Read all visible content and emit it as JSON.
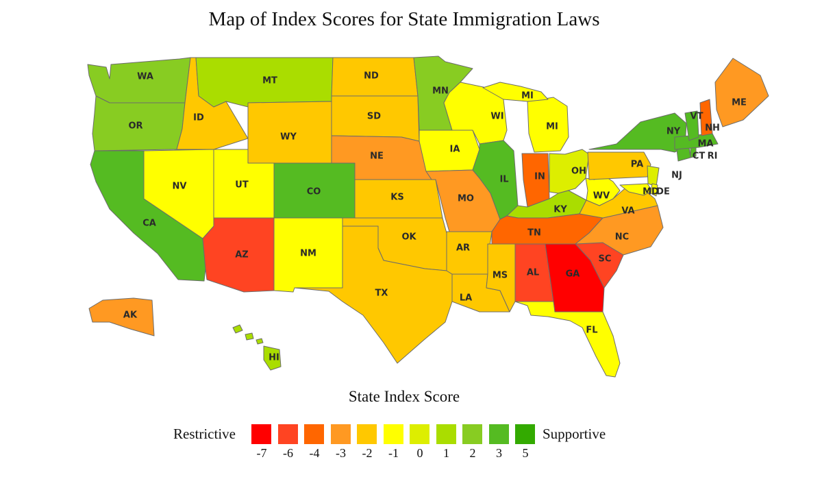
{
  "title": "Map of Index Scores for State Immigration Laws",
  "legend": {
    "title": "State Index Score",
    "left_label": "Restrictive",
    "right_label": "Supportive",
    "bins": [
      {
        "label": "-7",
        "color": "#ff0000"
      },
      {
        "label": "-6",
        "color": "#ff4422"
      },
      {
        "label": "-4",
        "color": "#ff6600"
      },
      {
        "label": "-3",
        "color": "#ff9922"
      },
      {
        "label": "-2",
        "color": "#ffc800"
      },
      {
        "label": "-1",
        "color": "#ffff00"
      },
      {
        "label": "0",
        "color": "#ddee00"
      },
      {
        "label": "1",
        "color": "#aadd00"
      },
      {
        "label": "2",
        "color": "#88cc22"
      },
      {
        "label": "3",
        "color": "#55bb22"
      },
      {
        "label": "5",
        "color": "#33aa00"
      }
    ]
  },
  "states": [
    {
      "abbr": "WA",
      "score": 2,
      "color": "#88cc22"
    },
    {
      "abbr": "OR",
      "score": 2,
      "color": "#88cc22"
    },
    {
      "abbr": "CA",
      "score": 3,
      "color": "#55bb22"
    },
    {
      "abbr": "ID",
      "score": -2,
      "color": "#ffc800"
    },
    {
      "abbr": "NV",
      "score": -1,
      "color": "#ffff00"
    },
    {
      "abbr": "MT",
      "score": 1,
      "color": "#aadd00"
    },
    {
      "abbr": "WY",
      "score": -2,
      "color": "#ffc800"
    },
    {
      "abbr": "UT",
      "score": -1,
      "color": "#ffff00"
    },
    {
      "abbr": "AZ",
      "score": -6,
      "color": "#ff4422"
    },
    {
      "abbr": "CO",
      "score": 3,
      "color": "#55bb22"
    },
    {
      "abbr": "NM",
      "score": -1,
      "color": "#ffff00"
    },
    {
      "abbr": "ND",
      "score": -2,
      "color": "#ffc800"
    },
    {
      "abbr": "SD",
      "score": -2,
      "color": "#ffc800"
    },
    {
      "abbr": "NE",
      "score": -3,
      "color": "#ff9922"
    },
    {
      "abbr": "KS",
      "score": -2,
      "color": "#ffc800"
    },
    {
      "abbr": "OK",
      "score": -2,
      "color": "#ffc800"
    },
    {
      "abbr": "TX",
      "score": -2,
      "color": "#ffc800"
    },
    {
      "abbr": "MN",
      "score": 2,
      "color": "#88cc22"
    },
    {
      "abbr": "IA",
      "score": -1,
      "color": "#ffff00"
    },
    {
      "abbr": "MO",
      "score": -3,
      "color": "#ff9922"
    },
    {
      "abbr": "AR",
      "score": -2,
      "color": "#ffc800"
    },
    {
      "abbr": "LA",
      "score": -2,
      "color": "#ffc800"
    },
    {
      "abbr": "WI",
      "score": -1,
      "color": "#ffff00"
    },
    {
      "abbr": "IL",
      "score": 3,
      "color": "#55bb22"
    },
    {
      "abbr": "MI",
      "score": -1,
      "color": "#ffff00"
    },
    {
      "abbr": "IN",
      "score": -4,
      "color": "#ff6600"
    },
    {
      "abbr": "OH",
      "score": 0,
      "color": "#ddee00"
    },
    {
      "abbr": "KY",
      "score": 1,
      "color": "#aadd00"
    },
    {
      "abbr": "TN",
      "score": -4,
      "color": "#ff6600"
    },
    {
      "abbr": "MS",
      "score": -2,
      "color": "#ffc800"
    },
    {
      "abbr": "AL",
      "score": -6,
      "color": "#ff4422"
    },
    {
      "abbr": "GA",
      "score": -7,
      "color": "#ff0000"
    },
    {
      "abbr": "FL",
      "score": -1,
      "color": "#ffff00"
    },
    {
      "abbr": "SC",
      "score": -6,
      "color": "#ff4422"
    },
    {
      "abbr": "NC",
      "score": -3,
      "color": "#ff9922"
    },
    {
      "abbr": "VA",
      "score": -2,
      "color": "#ffc800"
    },
    {
      "abbr": "WV",
      "score": -1,
      "color": "#ffff00"
    },
    {
      "abbr": "PA",
      "score": -2,
      "color": "#ffc800"
    },
    {
      "abbr": "NY",
      "score": 3,
      "color": "#55bb22"
    },
    {
      "abbr": "NJ",
      "score": 0,
      "color": "#ddee00"
    },
    {
      "abbr": "MD",
      "score": -1,
      "color": "#ffff00"
    },
    {
      "abbr": "DE",
      "score": -1,
      "color": "#ffff00"
    },
    {
      "abbr": "CT",
      "score": 3,
      "color": "#55bb22"
    },
    {
      "abbr": "RI",
      "score": 3,
      "color": "#55bb22"
    },
    {
      "abbr": "MA",
      "score": 3,
      "color": "#55bb22"
    },
    {
      "abbr": "VT",
      "score": 3,
      "color": "#55bb22"
    },
    {
      "abbr": "NH",
      "score": -4,
      "color": "#ff6600"
    },
    {
      "abbr": "ME",
      "score": -3,
      "color": "#ff9922"
    },
    {
      "abbr": "AK",
      "score": -3,
      "color": "#ff9922"
    },
    {
      "abbr": "HI",
      "score": 1,
      "color": "#aadd00"
    }
  ],
  "michigan_upper_label": "MI"
}
